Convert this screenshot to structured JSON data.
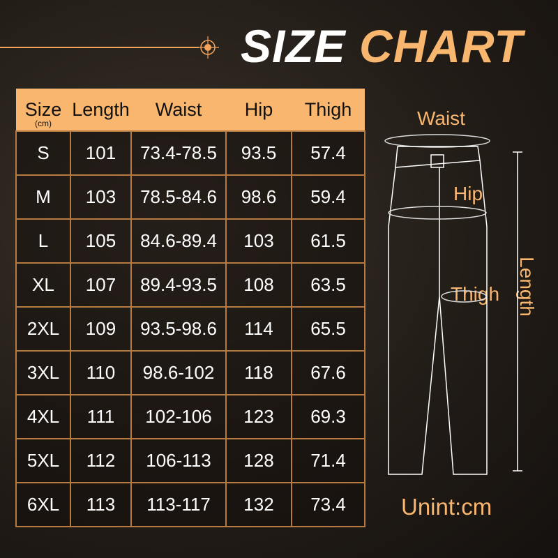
{
  "title": {
    "part1": "SIZE",
    "part2": "CHART"
  },
  "table": {
    "headers": [
      "Size",
      "Length",
      "Waist",
      "Hip",
      "Thigh"
    ],
    "size_unit": "(cm)",
    "rows": [
      [
        "S",
        "101",
        "73.4-78.5",
        "93.5",
        "57.4"
      ],
      [
        "M",
        "103",
        "78.5-84.6",
        "98.6",
        "59.4"
      ],
      [
        "L",
        "105",
        "84.6-89.4",
        "103",
        "61.5"
      ],
      [
        "XL",
        "107",
        "89.4-93.5",
        "108",
        "63.5"
      ],
      [
        "2XL",
        "109",
        "93.5-98.6",
        "114",
        "65.5"
      ],
      [
        "3XL",
        "110",
        "98.6-102",
        "118",
        "67.6"
      ],
      [
        "4XL",
        "111",
        "102-106",
        "123",
        "69.3"
      ],
      [
        "5XL",
        "112",
        "106-113",
        "128",
        "71.4"
      ],
      [
        "6XL",
        "113",
        "113-117",
        "132",
        "73.4"
      ]
    ]
  },
  "diagram": {
    "waist": "Waist",
    "hip": "Hip",
    "thigh": "Thigh",
    "length": "Length"
  },
  "unit_note": "Unint:cm",
  "colors": {
    "accent": "#f8b66f",
    "border": "#b77a40",
    "text": "#ffffff"
  }
}
